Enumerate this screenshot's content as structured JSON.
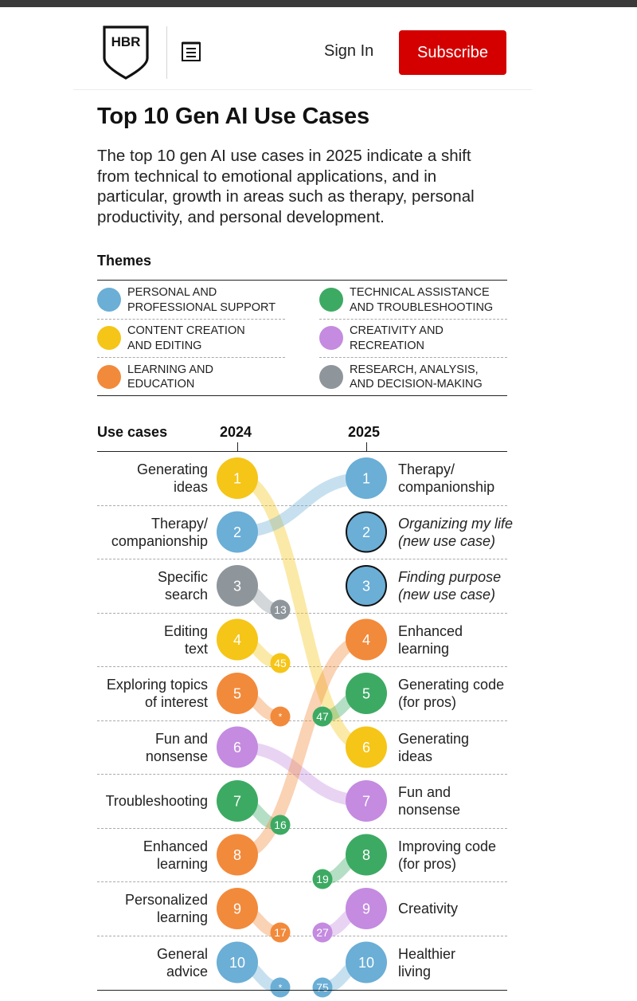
{
  "header": {
    "logo_text": "HBR",
    "signin_label": "Sign In",
    "subscribe_label": "Subscribe",
    "menu_icon": "menu-icon"
  },
  "article": {
    "title": "Top 10 Gen AI Use Cases",
    "description": "The top 10 gen AI use cases in 2025 indicate a shift from technical to emotional applications, and in particular, growth in areas such as therapy, personal productivity, and personal development."
  },
  "colors": {
    "personal": "#6BAED6",
    "content": "#F5C518",
    "learning": "#F28A3B",
    "technical": "#3DAA63",
    "creativity": "#C48BE0",
    "research": "#8E969C",
    "accent_red": "#D40000"
  },
  "themes": {
    "title": "Themes",
    "items": [
      {
        "key": "personal",
        "label": "Personal and\nprofessional support"
      },
      {
        "key": "content",
        "label": "Content creation\nand editing"
      },
      {
        "key": "learning",
        "label": "Learning and\neducation"
      },
      {
        "key": "technical",
        "label": "Technical assistance\nand troubleshooting"
      },
      {
        "key": "creativity",
        "label": "Creativity and\nrecreation"
      },
      {
        "key": "research",
        "label": "Research, analysis,\nand decision-making"
      }
    ]
  },
  "chart_data": {
    "type": "slope",
    "column_header": "Use cases",
    "year_left": "2024",
    "year_right": "2025",
    "left": [
      {
        "rank": 1,
        "label": "Generating\nideas",
        "theme": "content",
        "rank_2025": "6"
      },
      {
        "rank": 2,
        "label": "Therapy/\ncompanionship",
        "theme": "personal",
        "rank_2025": "1"
      },
      {
        "rank": 3,
        "label": "Specific\nsearch",
        "theme": "research",
        "rank_2025": "13"
      },
      {
        "rank": 4,
        "label": "Editing\ntext",
        "theme": "content",
        "rank_2025": "45"
      },
      {
        "rank": 5,
        "label": "Exploring topics\nof interest",
        "theme": "learning",
        "rank_2025": "*"
      },
      {
        "rank": 6,
        "label": "Fun and\nnonsense",
        "theme": "creativity",
        "rank_2025": "7"
      },
      {
        "rank": 7,
        "label": "Troubleshooting",
        "theme": "technical",
        "rank_2025": "16"
      },
      {
        "rank": 8,
        "label": "Enhanced\nlearning",
        "theme": "learning",
        "rank_2025": "4"
      },
      {
        "rank": 9,
        "label": "Personalized\nlearning",
        "theme": "learning",
        "rank_2025": "17"
      },
      {
        "rank": 10,
        "label": "General\nadvice",
        "theme": "personal",
        "rank_2025": "*"
      }
    ],
    "right": [
      {
        "rank": 1,
        "label": "Therapy/\ncompanionship",
        "theme": "personal",
        "new": false,
        "rank_2024": "2"
      },
      {
        "rank": 2,
        "label": "Organizing my life\n(new use case)",
        "theme": "personal",
        "new": true,
        "rank_2024": ""
      },
      {
        "rank": 3,
        "label": "Finding purpose\n(new use case)",
        "theme": "personal",
        "new": true,
        "rank_2024": ""
      },
      {
        "rank": 4,
        "label": "Enhanced\nlearning",
        "theme": "learning",
        "new": false,
        "rank_2024": "8"
      },
      {
        "rank": 5,
        "label": "Generating code\n(for pros)",
        "theme": "technical",
        "new": false,
        "rank_2024": "47"
      },
      {
        "rank": 6,
        "label": "Generating\nideas",
        "theme": "content",
        "new": false,
        "rank_2024": "1"
      },
      {
        "rank": 7,
        "label": "Fun and\nnonsense",
        "theme": "creativity",
        "new": false,
        "rank_2024": "6"
      },
      {
        "rank": 8,
        "label": "Improving code\n(for pros)",
        "theme": "technical",
        "new": false,
        "rank_2024": "19"
      },
      {
        "rank": 9,
        "label": "Creativity",
        "theme": "creativity",
        "new": false,
        "rank_2024": "27"
      },
      {
        "rank": 10,
        "label": "Healthier\nliving",
        "theme": "personal",
        "new": false,
        "rank_2024": "75"
      }
    ]
  }
}
